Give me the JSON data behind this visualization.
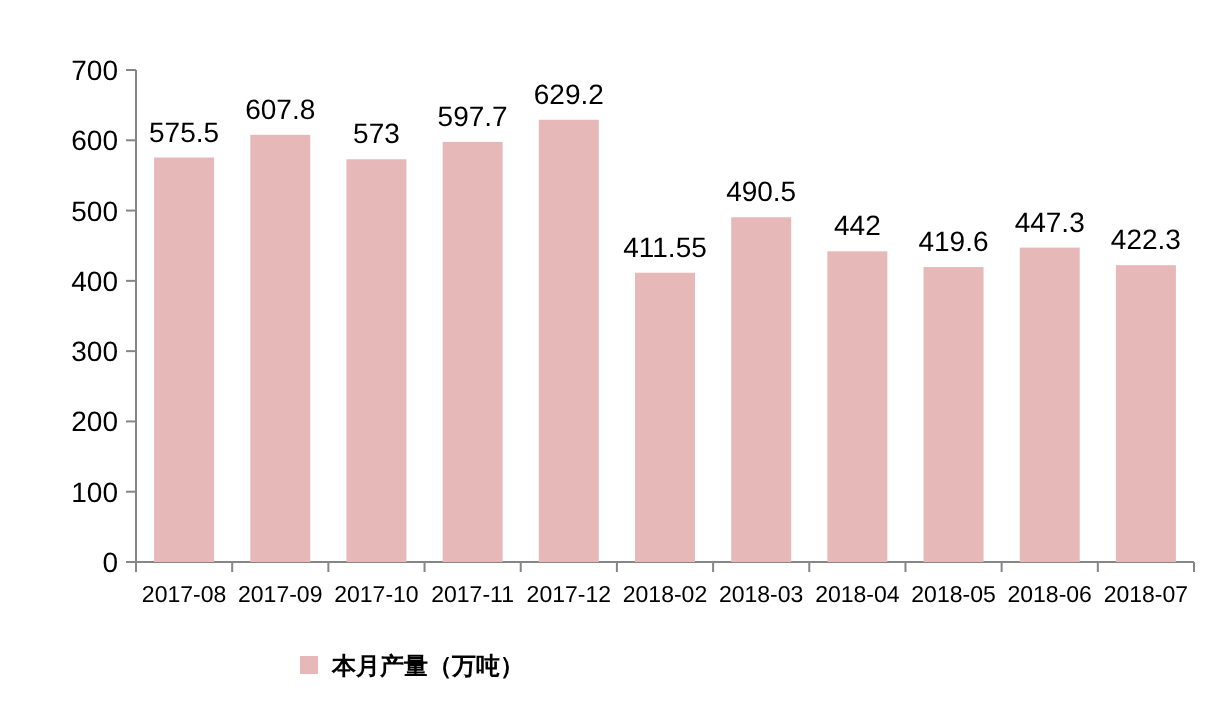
{
  "chart_data": {
    "type": "bar",
    "categories": [
      "2017-08",
      "2017-09",
      "2017-10",
      "2017-11",
      "2017-12",
      "2018-02",
      "2018-03",
      "2018-04",
      "2018-05",
      "2018-06",
      "2018-07"
    ],
    "series": [
      {
        "name": "本月产量（万吨）",
        "color": "#e6b9b8",
        "values": [
          575.5,
          607.8,
          573,
          597.7,
          629.2,
          411.55,
          490.5,
          442,
          419.6,
          447.3,
          422.3
        ]
      }
    ],
    "ylim": [
      0,
      700
    ],
    "yticks": [
      0,
      100,
      200,
      300,
      400,
      500,
      600,
      700
    ],
    "data_labels": true,
    "legend": "bottom",
    "grid": false
  }
}
